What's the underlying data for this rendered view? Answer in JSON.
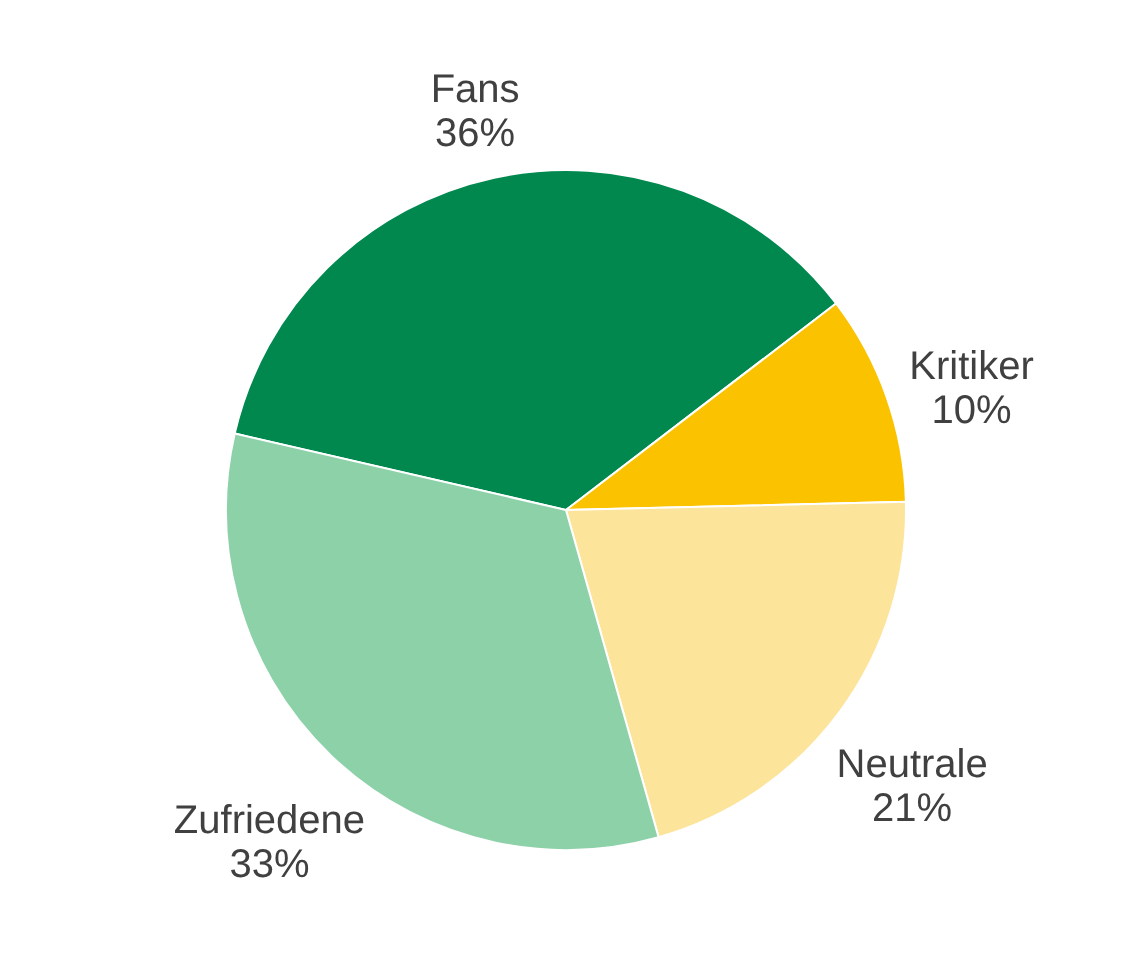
{
  "chart_data": {
    "type": "pie",
    "categories": [
      "Fans",
      "Kritiker",
      "Neutrale",
      "Zufriedene"
    ],
    "values": [
      36,
      10,
      21,
      33
    ],
    "value_labels": [
      "36%",
      "10%",
      "21%",
      "33%"
    ],
    "colors": [
      "#00884f",
      "#fbc200",
      "#fde49b",
      "#8dd1a8"
    ]
  }
}
